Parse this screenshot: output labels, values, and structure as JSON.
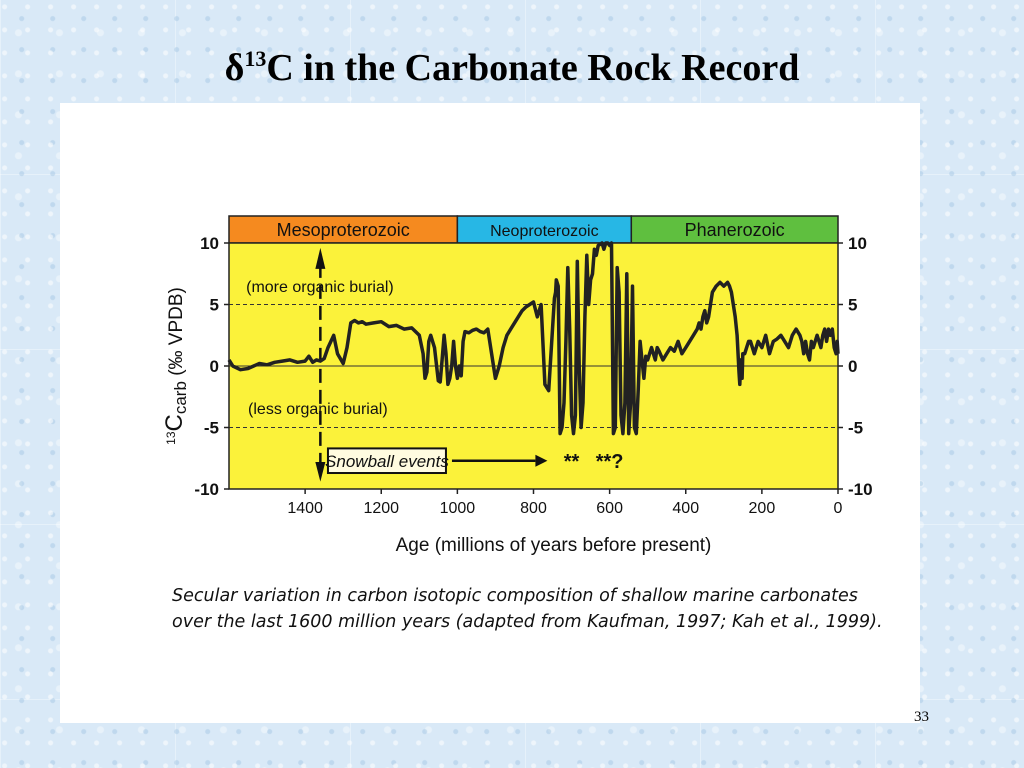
{
  "slide": {
    "title_symbol": "δ",
    "title_superscript": "13",
    "title_rest": "C in the Carbonate Rock Record",
    "page_number": "33"
  },
  "caption": "Secular variation in carbon isotopic composition of shallow marine carbonates over the last 1600 million years (adapted from Kaufman, 1997; Kah et al., 1999).",
  "chart_data": {
    "type": "line",
    "title": "",
    "xlabel": "Age (millions of years before present)",
    "ylabel_parts": {
      "sup": "13",
      "main": "C",
      "sub": "carb",
      "units": " (‰ VPDB)"
    },
    "xlim": [
      1600,
      0
    ],
    "ylim": [
      -10,
      10
    ],
    "x_ticks": [
      1400,
      1200,
      1000,
      800,
      600,
      400,
      200,
      0
    ],
    "x_tick_labels": [
      "1400",
      "1200",
      "1000",
      "800",
      "600",
      "400",
      "200",
      "0"
    ],
    "y_ticks": [
      10,
      5,
      0,
      -5,
      -10
    ],
    "y_tick_labels": [
      "10",
      "5",
      "0",
      "-5",
      "-10"
    ],
    "reference_lines": [
      5,
      0,
      -5
    ],
    "eons": [
      {
        "name": "Mesoproterozoic",
        "from": 1600,
        "to": 1000,
        "color": "#f58a1f"
      },
      {
        "name": "Neoproterozoic",
        "from": 1000,
        "to": 543,
        "color": "#27b7e5"
      },
      {
        "name": "Phanerozoic",
        "from": 543,
        "to": 0,
        "color": "#5fbf3f"
      }
    ],
    "colors": {
      "plot_bg": "#fbf23a",
      "line": "#222222"
    },
    "annotations": {
      "upper": "(more organic burial)",
      "lower": "(less organic burial)",
      "snowball_label": "Snowball events",
      "snowball_marks": [
        {
          "text": "**",
          "age": 700
        },
        {
          "text": "**?",
          "age": 600
        }
      ]
    },
    "series": [
      {
        "x": [
          1600,
          1590,
          1570,
          1550,
          1520,
          1500,
          1480,
          1460,
          1440,
          1420,
          1400,
          1390,
          1380,
          1370,
          1360,
          1350,
          1340,
          1325,
          1315,
          1300,
          1290,
          1280,
          1270,
          1260,
          1250,
          1240,
          1220,
          1200,
          1180,
          1160,
          1140,
          1120,
          1100,
          1090,
          1085,
          1080,
          1075,
          1070,
          1060,
          1050,
          1045,
          1040,
          1035,
          1030,
          1025,
          1020,
          1015,
          1010,
          1005,
          1000,
          995,
          990,
          985,
          980,
          970,
          960,
          950,
          940,
          930,
          920,
          910,
          900,
          890,
          880,
          870,
          860,
          850,
          840,
          830,
          820,
          810,
          800,
          790,
          780,
          770,
          760,
          750,
          745,
          742,
          740,
          735,
          730,
          725,
          720,
          715,
          710,
          705,
          700,
          695,
          690,
          685,
          680,
          675,
          670,
          665,
          660,
          655,
          650,
          645,
          640,
          635,
          630,
          620,
          615,
          610,
          605,
          600,
          595,
          590,
          585,
          580,
          575,
          570,
          565,
          560,
          555,
          550,
          545,
          540,
          535,
          530,
          525,
          520,
          515,
          510,
          505,
          500,
          495,
          490,
          485,
          480,
          475,
          470,
          460,
          450,
          440,
          430,
          420,
          410,
          400,
          390,
          380,
          370,
          365,
          360,
          355,
          350,
          345,
          340,
          335,
          330,
          320,
          310,
          300,
          290,
          285,
          280,
          275,
          270,
          265,
          260,
          258,
          255,
          252,
          250,
          245,
          240,
          235,
          230,
          220,
          210,
          200,
          190,
          180,
          170,
          160,
          150,
          140,
          130,
          120,
          110,
          100,
          95,
          90,
          85,
          80,
          75,
          70,
          65,
          60,
          55,
          50,
          45,
          40,
          35,
          30,
          25,
          20,
          15,
          10,
          5,
          2,
          0
        ],
        "y": [
          0.5,
          0,
          -0.3,
          -0.2,
          0.2,
          0.1,
          0.3,
          0.4,
          0.5,
          0.3,
          0.4,
          0.8,
          0.3,
          0.5,
          0.4,
          0.6,
          1.5,
          2.5,
          1.0,
          0.2,
          1.5,
          3.5,
          3.7,
          3.5,
          3.6,
          3.4,
          3.5,
          3.6,
          3.2,
          3.3,
          3.0,
          3.1,
          2.5,
          1.0,
          -1.0,
          -0.5,
          2.0,
          2.5,
          1.5,
          -1.2,
          -1.3,
          0.5,
          2.5,
          1.0,
          -1.5,
          -1.0,
          0.0,
          2.0,
          0.0,
          -1.0,
          0.0,
          -0.8,
          2.0,
          2.8,
          2.7,
          2.9,
          3.0,
          2.8,
          2.7,
          3.0,
          1.0,
          -1.0,
          0.0,
          1.5,
          2.5,
          3.0,
          3.5,
          4.0,
          4.5,
          4.8,
          5.0,
          5.2,
          4.0,
          5.0,
          -1.5,
          -2.0,
          3.0,
          5.5,
          6.0,
          7.0,
          6.5,
          -5.5,
          -5.0,
          -3.0,
          2.0,
          8.0,
          3.0,
          -4.0,
          -5.5,
          -4.0,
          8.5,
          0.0,
          -5.0,
          -3.0,
          4.0,
          9.0,
          5.0,
          7.0,
          7.5,
          9.5,
          9.0,
          9.8,
          10,
          9.5,
          10,
          10,
          9.8,
          10,
          -5.5,
          -5.0,
          8.0,
          6.0,
          -4.0,
          -5.5,
          -3.0,
          7.5,
          -5.5,
          -3.0,
          6.5,
          -5.0,
          -5.5,
          -2.0,
          2.0,
          0.5,
          -1.0,
          0.8,
          0.5,
          1.0,
          1.5,
          1.0,
          0.5,
          1.5,
          1.2,
          0.5,
          1.0,
          1.5,
          1.2,
          2.0,
          1.0,
          1.5,
          2.0,
          2.5,
          3.0,
          3.5,
          3.0,
          4.0,
          4.5,
          3.5,
          4.0,
          5.0,
          6.0,
          6.5,
          6.8,
          6.5,
          6.8,
          6.5,
          6.0,
          5.0,
          4.0,
          2.5,
          -0.5,
          -1.5,
          0.5,
          -1.0,
          1.0,
          1.0,
          1.5,
          2.0,
          2.0,
          1.0,
          2.0,
          1.5,
          2.5,
          1.0,
          2.0,
          2.2,
          2.5,
          2.0,
          1.5,
          2.5,
          3.0,
          2.5,
          2.0,
          1.0,
          2.0,
          1.0,
          0.5,
          2.0,
          1.5,
          2.0,
          2.5,
          2.0,
          1.5,
          2.5,
          3.0,
          2.0,
          3.0,
          2.5,
          3.0,
          1.5,
          1.0,
          2.0,
          1.0
        ]
      }
    ]
  }
}
